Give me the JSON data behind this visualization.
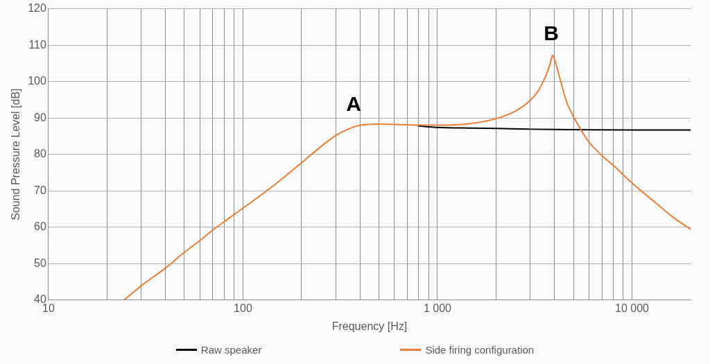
{
  "chart_data": {
    "type": "line",
    "xlabel": "Frequency [Hz]",
    "ylabel": "Sound Pressure Level [dB]",
    "log": "x",
    "grid": true,
    "legend": "bottom",
    "marker": "none",
    "line_style": "solid",
    "xlim": [
      10,
      20000
    ],
    "ylim": [
      40,
      120
    ],
    "xticks": [
      10,
      {
        "value": 20,
        "label": null
      },
      {
        "value": 30,
        "label": null
      },
      {
        "value": 40,
        "label": null
      },
      {
        "value": 50,
        "label": null
      },
      {
        "value": 60,
        "label": null
      },
      {
        "value": 70,
        "label": null
      },
      {
        "value": 80,
        "label": null
      },
      {
        "value": 90,
        "label": null
      },
      100,
      {
        "value": 200,
        "label": null
      },
      {
        "value": 300,
        "label": null
      },
      {
        "value": 400,
        "label": null
      },
      {
        "value": 500,
        "label": null
      },
      {
        "value": 600,
        "label": null
      },
      {
        "value": 700,
        "label": null
      },
      {
        "value": 800,
        "label": null
      },
      {
        "value": 900,
        "label": null
      },
      {
        "value": 1000,
        "label": "1 000"
      },
      {
        "value": 2000,
        "label": null
      },
      {
        "value": 3000,
        "label": null
      },
      {
        "value": 4000,
        "label": null
      },
      {
        "value": 5000,
        "label": null
      },
      {
        "value": 6000,
        "label": null
      },
      {
        "value": 7000,
        "label": null
      },
      {
        "value": 8000,
        "label": null
      },
      {
        "value": 9000,
        "label": null
      },
      {
        "value": 10000,
        "label": "10 000"
      }
    ],
    "yticks": [
      40,
      50,
      60,
      70,
      80,
      90,
      100,
      110,
      120
    ],
    "series": [
      {
        "name": "Raw speaker",
        "color": "#000000",
        "x": [
          800,
          1000,
          1500,
          2000,
          3000,
          5000,
          10000,
          20000
        ],
        "values": [
          87.8,
          87.4,
          87.2,
          87.1,
          86.9,
          86.8,
          86.7,
          86.7
        ]
      },
      {
        "name": "Side firing configuration",
        "color": "#ed7d31",
        "x": [
          24.5,
          30,
          40,
          50,
          60,
          70,
          80,
          100,
          150,
          200,
          250,
          300,
          350,
          400,
          500,
          600,
          700,
          800,
          1000,
          1500,
          2000,
          2500,
          3000,
          3300,
          3600,
          3800,
          3900,
          4000,
          4300,
          4600,
          5000,
          5500,
          6000,
          7000,
          8000,
          10000,
          13000,
          16000,
          20000
        ],
        "values": [
          40,
          43.9,
          48.8,
          53.1,
          56.3,
          59.2,
          61.5,
          65.2,
          72.2,
          77.7,
          82,
          85.2,
          87,
          88,
          88.3,
          88.2,
          88.1,
          88,
          88,
          88.5,
          89.8,
          91.8,
          94.8,
          97.5,
          101.5,
          105,
          107.2,
          106,
          100,
          94.5,
          90.4,
          86.5,
          83.4,
          79.7,
          77,
          72.1,
          67,
          63,
          59.4
        ]
      }
    ],
    "annotations": [
      "A",
      "B"
    ]
  }
}
